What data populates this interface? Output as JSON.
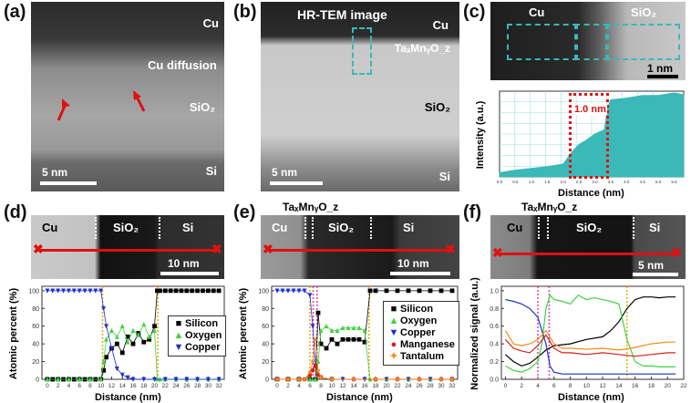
{
  "panels": {
    "a": {
      "label": "(a)",
      "cu": "Cu",
      "diffusion": "Cu diffusion",
      "sio2": "SiO₂",
      "si": "Si",
      "scale": "5 nm"
    },
    "b": {
      "label": "(b)",
      "title": "HR-TEM image",
      "cu": "Cu",
      "tamno": "TaₓMnᵧO_z",
      "sio2": "SiO₂",
      "si": "Si",
      "scale": "5 nm"
    },
    "c": {
      "label": "(c)",
      "cu": "Cu",
      "sio2": "SiO₂",
      "scale": "1 nm",
      "ylabel": "Intensity (a.u.)",
      "xlabel": "Distance (nm)",
      "annot": "1.0 nm",
      "xticks": [
        "0.0",
        "0.5",
        "1.0",
        "1.5",
        "2.0",
        "2.5",
        "3.0",
        "3.5",
        "4.0",
        "4.5",
        "5.0",
        "5.5"
      ]
    },
    "d": {
      "label": "(d)",
      "cu": "Cu",
      "sio2": "SiO₂",
      "si": "Si",
      "scale": "10 nm",
      "ylabel": "Atomic percent (%)",
      "xlabel": "Distance (nm)",
      "legend": [
        "Silicon",
        "Oxygen",
        "Copper"
      ],
      "xticks": [
        "0",
        "2",
        "4",
        "6",
        "8",
        "10",
        "12",
        "14",
        "16",
        "18",
        "20",
        "22",
        "24",
        "26",
        "28",
        "30",
        "32"
      ],
      "yticks": [
        "0",
        "20",
        "40",
        "60",
        "80",
        "100"
      ]
    },
    "e": {
      "label": "(e)",
      "title": "TaₓMnᵧO_z",
      "cu": "Cu",
      "sio2": "SiO₂",
      "si": "Si",
      "scale": "10 nm",
      "ylabel": "Atomic percent (%)",
      "xlabel": "Distance (nm)",
      "legend": [
        "Silicon",
        "Oxygen",
        "Copper",
        "Manganese",
        "Tantalum"
      ],
      "xticks": [
        "0",
        "2",
        "4",
        "6",
        "8",
        "10",
        "12",
        "14",
        "16",
        "18",
        "20",
        "22",
        "24",
        "26",
        "28",
        "30",
        "32"
      ],
      "yticks": [
        "0",
        "20",
        "40",
        "60",
        "80",
        "100"
      ]
    },
    "f": {
      "label": "(f)",
      "title": "TaₓMnᵧO_z",
      "cu": "Cu",
      "sio2": "SiO₂",
      "si": "Si",
      "scale": "5 nm",
      "ylabel": "Normalized signal (a.u.)",
      "xlabel": "Distance (nm)",
      "xticks": [
        "0",
        "2",
        "4",
        "6",
        "8",
        "10",
        "12",
        "14",
        "16",
        "18",
        "20",
        "22"
      ],
      "yticks": [
        "0.0",
        "0.2",
        "0.4",
        "0.6",
        "0.8",
        "1.0"
      ]
    }
  },
  "colors": {
    "silicon": "#000000",
    "oxygen": "#3fd43f",
    "copper": "#1a2fd0",
    "manganese": "#d42020",
    "tantalum": "#f08c1a",
    "teal": "#3bb8b8",
    "red": "#e01010",
    "orangeDot": "#e6a800",
    "pinkDot": "#e040b0"
  },
  "chart_data": [
    {
      "panel": "d",
      "type": "scatter",
      "title": "",
      "xlabel": "Distance (nm)",
      "ylabel": "Atomic percent (%)",
      "xlim": [
        -1,
        33
      ],
      "ylim": [
        0,
        105
      ],
      "series": [
        {
          "name": "Silicon",
          "x": [
            0,
            1,
            2,
            3,
            4,
            5,
            6,
            7,
            8,
            9,
            10,
            10.5,
            11,
            12,
            13,
            14,
            15,
            16,
            17,
            18,
            19,
            20,
            20.5,
            21,
            22,
            23,
            24,
            25,
            26,
            27,
            28,
            29,
            30,
            31,
            32
          ],
          "y": [
            0,
            0,
            0,
            0,
            0,
            0,
            0,
            0,
            0,
            0,
            0,
            10,
            25,
            35,
            40,
            30,
            48,
            40,
            52,
            42,
            45,
            60,
            100,
            100,
            100,
            100,
            100,
            100,
            100,
            100,
            100,
            100,
            100,
            100,
            100
          ]
        },
        {
          "name": "Oxygen",
          "x": [
            0,
            2,
            4,
            6,
            8,
            10,
            10.5,
            11,
            12,
            13,
            14,
            15,
            16,
            17,
            18,
            19,
            20,
            20.5,
            21,
            22,
            24,
            26,
            28,
            30,
            32
          ],
          "y": [
            0,
            0,
            0,
            0,
            0,
            0,
            20,
            45,
            55,
            48,
            60,
            42,
            55,
            50,
            62,
            48,
            55,
            0,
            0,
            0,
            0,
            0,
            0,
            0,
            0
          ]
        },
        {
          "name": "Copper",
          "x": [
            0,
            1,
            2,
            3,
            4,
            5,
            6,
            7,
            8,
            9,
            10,
            10.5,
            11,
            12,
            13,
            14,
            15,
            16,
            18,
            20,
            22,
            24,
            26,
            28,
            30,
            32
          ],
          "y": [
            100,
            100,
            100,
            100,
            100,
            100,
            100,
            100,
            100,
            100,
            100,
            80,
            60,
            35,
            12,
            5,
            2,
            0,
            0,
            0,
            0,
            0,
            0,
            0,
            0,
            0
          ]
        }
      ]
    },
    {
      "panel": "e",
      "type": "scatter",
      "title": "",
      "xlabel": "Distance (nm)",
      "ylabel": "Atomic percent (%)",
      "xlim": [
        -1,
        33
      ],
      "ylim": [
        0,
        105
      ],
      "series": [
        {
          "name": "Silicon",
          "x": [
            0,
            2,
            4,
            6,
            7,
            7.5,
            8,
            9,
            10,
            11,
            12,
            13,
            14,
            15,
            16,
            17,
            18,
            20,
            22,
            24,
            26,
            28,
            30,
            32
          ],
          "y": [
            0,
            0,
            0,
            0,
            0,
            75,
            40,
            35,
            45,
            40,
            45,
            45,
            45,
            45,
            42,
            100,
            100,
            100,
            100,
            100,
            100,
            100,
            100,
            100
          ]
        },
        {
          "name": "Oxygen",
          "x": [
            0,
            2,
            4,
            6,
            7,
            7.5,
            8,
            9,
            10,
            11,
            12,
            13,
            14,
            15,
            16,
            17,
            18,
            20,
            24,
            28,
            32
          ],
          "y": [
            0,
            0,
            0,
            0,
            0,
            20,
            55,
            60,
            55,
            55,
            58,
            58,
            58,
            58,
            55,
            0,
            0,
            0,
            0,
            0,
            0
          ]
        },
        {
          "name": "Copper",
          "x": [
            0,
            1,
            2,
            3,
            4,
            5,
            6,
            6.5,
            7,
            8,
            10,
            12,
            16,
            20,
            24,
            28,
            32
          ],
          "y": [
            100,
            100,
            100,
            100,
            100,
            100,
            95,
            60,
            15,
            2,
            0,
            0,
            0,
            0,
            0,
            0,
            0
          ]
        },
        {
          "name": "Manganese",
          "x": [
            0,
            2,
            4,
            5,
            6,
            6.5,
            7,
            7.5,
            8,
            10,
            14,
            18,
            22,
            26,
            30,
            32
          ],
          "y": [
            0,
            0,
            0,
            0,
            5,
            10,
            15,
            5,
            2,
            0,
            0,
            0,
            0,
            0,
            0,
            0
          ]
        },
        {
          "name": "Tantalum",
          "x": [
            0,
            2,
            4,
            5,
            6,
            6.5,
            7,
            7.5,
            8,
            10,
            14,
            18,
            22,
            26,
            30,
            32
          ],
          "y": [
            0,
            0,
            0,
            0,
            8,
            20,
            45,
            10,
            2,
            0,
            0,
            0,
            0,
            0,
            0,
            0
          ]
        }
      ]
    },
    {
      "panel": "f",
      "type": "line",
      "title": "",
      "xlabel": "Distance (nm)",
      "ylabel": "Normalized signal (a.u.)",
      "xlim": [
        -0.5,
        22
      ],
      "ylim": [
        0,
        1.05
      ],
      "series": [
        {
          "name": "Silicon",
          "x": [
            0,
            1,
            2,
            3,
            4,
            5,
            6,
            8,
            10,
            12,
            13,
            14,
            15,
            16,
            17,
            18,
            19,
            20,
            21
          ],
          "y": [
            0.28,
            0.2,
            0.15,
            0.18,
            0.25,
            0.33,
            0.38,
            0.4,
            0.45,
            0.48,
            0.55,
            0.65,
            0.8,
            0.9,
            0.93,
            0.93,
            0.92,
            0.93,
            0.93
          ]
        },
        {
          "name": "Oxygen",
          "x": [
            0,
            1,
            2,
            3,
            4,
            4.5,
            5,
            5.5,
            6,
            7,
            8,
            9,
            10,
            11,
            12,
            13,
            14,
            15,
            16,
            17,
            18,
            19,
            20,
            21
          ],
          "y": [
            0.15,
            0.1,
            0.08,
            0.12,
            0.2,
            0.4,
            0.8,
            0.95,
            0.9,
            0.88,
            0.85,
            0.95,
            0.9,
            0.92,
            0.9,
            0.88,
            0.85,
            0.45,
            0.2,
            0.15,
            0.15,
            0.14,
            0.14,
            0.14
          ]
        },
        {
          "name": "Copper",
          "x": [
            0,
            1,
            2,
            3,
            4,
            5,
            5.5,
            6,
            7,
            8,
            10,
            12,
            14,
            16,
            18,
            20,
            21
          ],
          "y": [
            0.9,
            0.88,
            0.85,
            0.8,
            0.7,
            0.4,
            0.15,
            0.08,
            0.06,
            0.06,
            0.06,
            0.06,
            0.06,
            0.06,
            0.06,
            0.06,
            0.06
          ]
        },
        {
          "name": "Manganese",
          "x": [
            0,
            1,
            2,
            3,
            4,
            5,
            6,
            7,
            8,
            10,
            12,
            14,
            16,
            18,
            20,
            21
          ],
          "y": [
            0.45,
            0.35,
            0.32,
            0.3,
            0.38,
            0.5,
            0.35,
            0.3,
            0.3,
            0.28,
            0.3,
            0.28,
            0.26,
            0.28,
            0.3,
            0.3
          ]
        },
        {
          "name": "Tantalum",
          "x": [
            0,
            1,
            2,
            3,
            4,
            5,
            6,
            7,
            8,
            10,
            12,
            14,
            16,
            18,
            20,
            21
          ],
          "y": [
            0.55,
            0.4,
            0.38,
            0.4,
            0.45,
            0.55,
            0.4,
            0.35,
            0.35,
            0.34,
            0.35,
            0.33,
            0.36,
            0.4,
            0.42,
            0.42
          ]
        }
      ]
    },
    {
      "panel": "c",
      "type": "area",
      "title": "",
      "xlabel": "Distance (nm)",
      "ylabel": "Intensity (a.u.)",
      "xlim": [
        0,
        5.8
      ],
      "ylim": [
        0,
        1
      ],
      "series": [
        {
          "name": "Intensity",
          "x": [
            0,
            0.5,
            1,
            1.5,
            2,
            2.3,
            2.5,
            2.7,
            3,
            3.3,
            3.4,
            3.5,
            4,
            4.5,
            5,
            5.5,
            5.8
          ],
          "y": [
            0.05,
            0.08,
            0.1,
            0.12,
            0.15,
            0.3,
            0.38,
            0.42,
            0.5,
            0.55,
            0.8,
            0.9,
            0.92,
            0.95,
            0.95,
            0.98,
            0.96
          ]
        }
      ]
    }
  ]
}
